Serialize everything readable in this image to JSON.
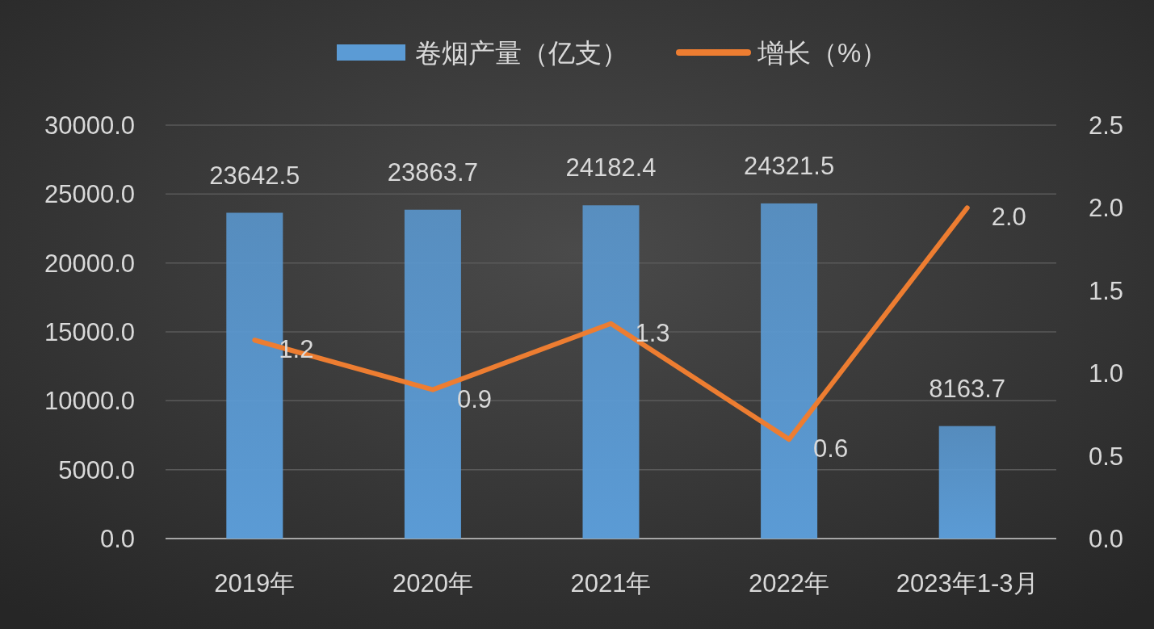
{
  "chart_data": {
    "type": "bar",
    "categories": [
      "2019年",
      "2020年",
      "2021年",
      "2022年",
      "2023年1-3月"
    ],
    "series": [
      {
        "name": "卷烟产量（亿支）",
        "color": "#5b9bd5",
        "values": [
          23642.5,
          23863.7,
          24182.4,
          24321.5,
          8163.7
        ],
        "value_labels": [
          "23642.5",
          "23863.7",
          "24182.4",
          "24321.5",
          "8163.7"
        ]
      },
      {
        "name": "增长（%）",
        "type": "line",
        "axis": "y2",
        "color": "#ed7d31",
        "values": [
          1.2,
          0.9,
          1.3,
          0.6,
          2.0
        ],
        "value_labels": [
          "1.2",
          "0.9",
          "1.3",
          "0.6",
          "2.0"
        ]
      }
    ],
    "ylim": [
      0,
      30000
    ],
    "yticks": [
      {
        "value": 0,
        "label": "0.0"
      },
      {
        "value": 5000,
        "label": "5000.0"
      },
      {
        "value": 10000,
        "label": "10000.0"
      },
      {
        "value": 15000,
        "label": "15000.0"
      },
      {
        "value": 20000,
        "label": "20000.0"
      },
      {
        "value": 25000,
        "label": "25000.0"
      },
      {
        "value": 30000,
        "label": "30000.0"
      }
    ],
    "y2lim": [
      0,
      2.5
    ],
    "y2ticks": [
      {
        "value": 0,
        "label": "0.0"
      },
      {
        "value": 0.5,
        "label": "0.5"
      },
      {
        "value": 1,
        "label": "1.0"
      },
      {
        "value": 1.5,
        "label": "1.5"
      },
      {
        "value": 2,
        "label": "2.0"
      },
      {
        "value": 2.5,
        "label": "2.5"
      }
    ],
    "grid": "y",
    "legend": "top"
  }
}
